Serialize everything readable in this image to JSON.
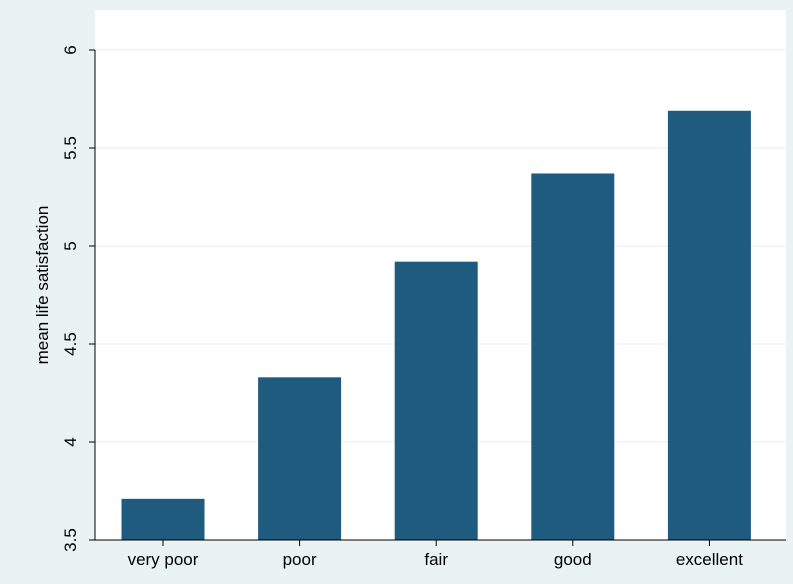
{
  "chart_data": {
    "type": "bar",
    "title": "",
    "xlabel": "",
    "ylabel": "mean life satisfaction",
    "categories": [
      "very poor",
      "poor",
      "fair",
      "good",
      "excellent"
    ],
    "values": [
      3.71,
      4.33,
      4.92,
      5.37,
      5.69
    ],
    "ylim": [
      3.5,
      6
    ],
    "yticks": [
      3.5,
      4,
      4.5,
      5,
      5.5,
      6
    ],
    "ytick_labels": [
      "3.5",
      "4",
      "4.5",
      "5",
      "5.5",
      "6"
    ],
    "grid": "horizontal",
    "legend": "none"
  },
  "colors": {
    "bar": "#1f5a7f",
    "plot_background": "#ffffff",
    "page_background": "#eaf2f3",
    "gridline": "#e6eef1",
    "axis": "#000000"
  }
}
